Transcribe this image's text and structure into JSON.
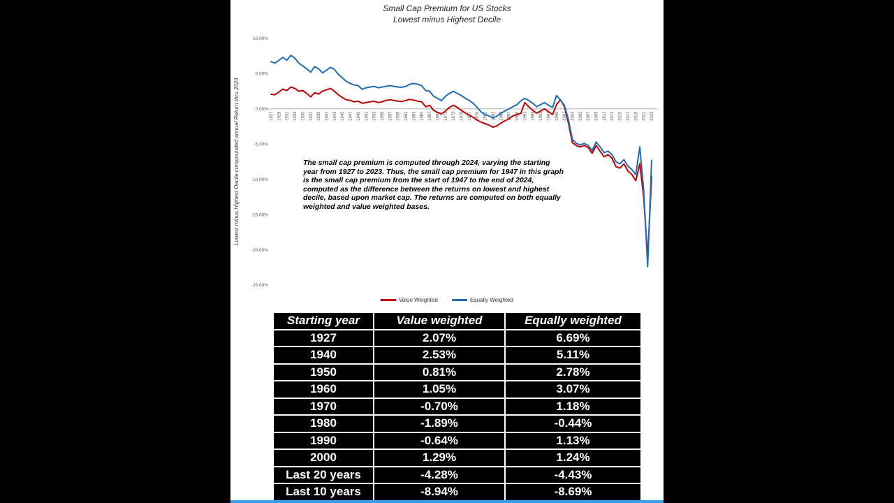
{
  "frame": {
    "bg": "#000000",
    "panel_bg": "#ffffff",
    "bottom_bar_color": "#3d9fe8"
  },
  "chart": {
    "title": "Small Cap Premium for US Stocks",
    "subtitle": "Lowest minus Highest Decile",
    "y_axis_title": "Lowest minus Highest Decile compounded annual Return thru 2024",
    "annotation": "The small cap premium is computed through 2024, varying the starting year from 1927 to 2023. Thus, the small cap premium for 1947 in this graph is the small cap premium from the start of 1947 to the end of 2024, computed as the difference between the returns on lowest and highest decile, based upon market cap. The returns are computed on both equally weighted and value weighted bases.",
    "legend": [
      {
        "label": "Value Weighted",
        "color": "#c00000"
      },
      {
        "label": "Equally Weighted",
        "color": "#1f6cb5"
      }
    ]
  },
  "chart_data": {
    "type": "line",
    "title": "Small Cap Premium for US Stocks - Lowest minus Highest Decile",
    "xlabel": "Starting year",
    "ylabel": "Lowest minus Highest Decile compounded annual Return thru 2024",
    "ylim": [
      -25,
      10
    ],
    "grid": false,
    "legend_position": "bottom",
    "y_ticks": [
      "10.00%",
      "5.00%",
      "0.00%",
      "-5.00%",
      "-10.00%",
      "-15.00%",
      "-20.00%",
      "-25.00%"
    ],
    "x_tick_step": 2,
    "x": [
      1927,
      1928,
      1929,
      1930,
      1931,
      1932,
      1933,
      1934,
      1935,
      1936,
      1937,
      1938,
      1939,
      1940,
      1941,
      1942,
      1943,
      1944,
      1945,
      1946,
      1947,
      1948,
      1949,
      1950,
      1951,
      1952,
      1953,
      1954,
      1955,
      1956,
      1957,
      1958,
      1959,
      1960,
      1961,
      1962,
      1963,
      1964,
      1965,
      1966,
      1967,
      1968,
      1969,
      1970,
      1971,
      1972,
      1973,
      1974,
      1975,
      1976,
      1977,
      1978,
      1979,
      1980,
      1981,
      1982,
      1983,
      1984,
      1985,
      1986,
      1987,
      1988,
      1989,
      1990,
      1991,
      1992,
      1993,
      1994,
      1995,
      1996,
      1997,
      1998,
      1999,
      2000,
      2001,
      2002,
      2003,
      2004,
      2005,
      2006,
      2007,
      2008,
      2009,
      2010,
      2011,
      2012,
      2013,
      2014,
      2015,
      2016,
      2017,
      2018,
      2019,
      2020,
      2021,
      2022,
      2023
    ],
    "series": [
      {
        "name": "Value Weighted",
        "color": "#c00000",
        "values": [
          2.07,
          2.0,
          2.4,
          2.8,
          2.6,
          3.1,
          2.9,
          2.5,
          2.6,
          2.2,
          1.7,
          2.3,
          2.1,
          2.53,
          2.7,
          2.9,
          2.5,
          2.0,
          1.6,
          1.3,
          1.2,
          1.0,
          1.1,
          0.81,
          0.9,
          1.0,
          1.1,
          0.9,
          1.0,
          1.2,
          1.3,
          1.2,
          1.1,
          1.05,
          1.2,
          1.35,
          1.25,
          1.1,
          1.0,
          0.3,
          0.5,
          -0.2,
          -0.5,
          -0.7,
          -0.3,
          0.2,
          0.5,
          0.2,
          -0.2,
          -0.6,
          -0.9,
          -1.2,
          -1.6,
          -1.89,
          -2.1,
          -2.3,
          -2.6,
          -2.4,
          -2.0,
          -1.7,
          -1.4,
          -1.0,
          -0.8,
          -0.64,
          0.9,
          0.3,
          -0.2,
          -0.6,
          -0.3,
          0.0,
          -0.4,
          -0.8,
          0.6,
          1.29,
          0.3,
          -2.0,
          -4.8,
          -5.2,
          -5.4,
          -5.2,
          -5.5,
          -6.3,
          -5.2,
          -6.0,
          -6.8,
          -6.5,
          -7.0,
          -8.2,
          -8.4,
          -7.8,
          -8.8,
          -9.3,
          -10.2,
          -7.8,
          -12.5,
          -21.0,
          -9.6
        ]
      },
      {
        "name": "Equally Weighted",
        "color": "#1f6cb5",
        "values": [
          6.69,
          6.5,
          6.9,
          7.3,
          6.9,
          7.6,
          7.2,
          6.5,
          6.1,
          5.7,
          5.2,
          6.0,
          5.7,
          5.11,
          5.5,
          5.9,
          5.6,
          4.9,
          4.4,
          3.9,
          3.6,
          3.4,
          3.3,
          2.78,
          3.0,
          3.1,
          3.2,
          3.0,
          3.1,
          3.2,
          3.3,
          3.2,
          3.1,
          3.07,
          3.2,
          3.5,
          3.6,
          3.5,
          3.3,
          2.6,
          2.5,
          1.8,
          1.5,
          1.18,
          1.8,
          2.2,
          2.5,
          2.2,
          1.9,
          1.5,
          1.2,
          0.8,
          0.2,
          -0.44,
          -0.8,
          -1.0,
          -1.3,
          -1.0,
          -0.6,
          -0.3,
          0.0,
          0.3,
          0.6,
          1.13,
          1.5,
          1.2,
          0.8,
          0.3,
          0.6,
          0.9,
          0.5,
          0.2,
          1.9,
          1.24,
          0.5,
          -1.5,
          -4.3,
          -4.9,
          -5.1,
          -4.9,
          -5.2,
          -5.9,
          -4.7,
          -5.4,
          -6.2,
          -6.0,
          -6.5,
          -7.5,
          -7.8,
          -7.2,
          -8.1,
          -8.6,
          -9.3,
          -5.4,
          -11.5,
          -22.4,
          -7.3
        ]
      }
    ]
  },
  "table": {
    "headers": [
      "Starting year",
      "Value weighted",
      "Equally weighted"
    ],
    "rows": [
      [
        "1927",
        "2.07%",
        "6.69%"
      ],
      [
        "1940",
        "2.53%",
        "5.11%"
      ],
      [
        "1950",
        "0.81%",
        "2.78%"
      ],
      [
        "1960",
        "1.05%",
        "3.07%"
      ],
      [
        "1970",
        "-0.70%",
        "1.18%"
      ],
      [
        "1980",
        "-1.89%",
        "-0.44%"
      ],
      [
        "1990",
        "-0.64%",
        "1.13%"
      ],
      [
        "2000",
        "1.29%",
        "1.24%"
      ],
      [
        "Last 20 years",
        "-4.28%",
        "-4.43%"
      ],
      [
        "Last 10 years",
        "-8.94%",
        "-8.69%"
      ]
    ]
  }
}
